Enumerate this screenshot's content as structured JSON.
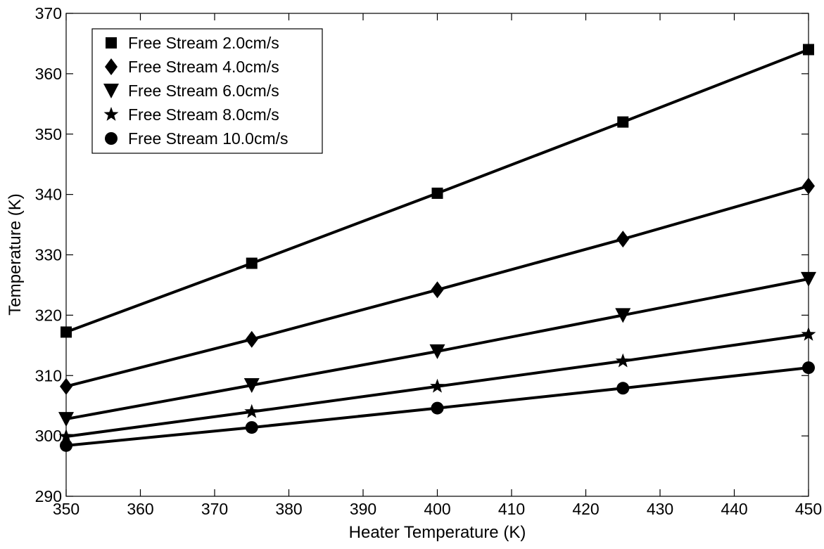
{
  "chart_data": {
    "type": "line",
    "title": "",
    "xlabel": "Heater Temperature (K)",
    "ylabel": "Temperature (K)",
    "xlim": [
      350,
      450
    ],
    "ylim": [
      290,
      370
    ],
    "xticks": [
      350,
      360,
      370,
      380,
      390,
      400,
      410,
      420,
      430,
      440,
      450
    ],
    "yticks": [
      290,
      300,
      310,
      320,
      330,
      340,
      350,
      360,
      370
    ],
    "grid": false,
    "legend_position": "top-left",
    "x": [
      350,
      375,
      400,
      425,
      450
    ],
    "series": [
      {
        "name": "Free Stream 2.0cm/s",
        "marker": "square",
        "values": [
          317.2,
          328.6,
          340.2,
          352.0,
          364.0
        ]
      },
      {
        "name": "Free Stream 4.0cm/s",
        "marker": "diamond",
        "values": [
          308.2,
          316.0,
          324.2,
          332.6,
          341.4
        ]
      },
      {
        "name": "Free Stream 6.0cm/s",
        "marker": "triangle-down",
        "values": [
          302.8,
          308.4,
          314.0,
          320.0,
          326.0
        ]
      },
      {
        "name": "Free Stream 8.0cm/s",
        "marker": "star",
        "values": [
          299.9,
          304.0,
          308.2,
          312.4,
          316.8
        ]
      },
      {
        "name": "Free Stream 10.0cm/s",
        "marker": "circle",
        "values": [
          298.4,
          301.4,
          304.6,
          307.9,
          311.3
        ]
      }
    ]
  }
}
